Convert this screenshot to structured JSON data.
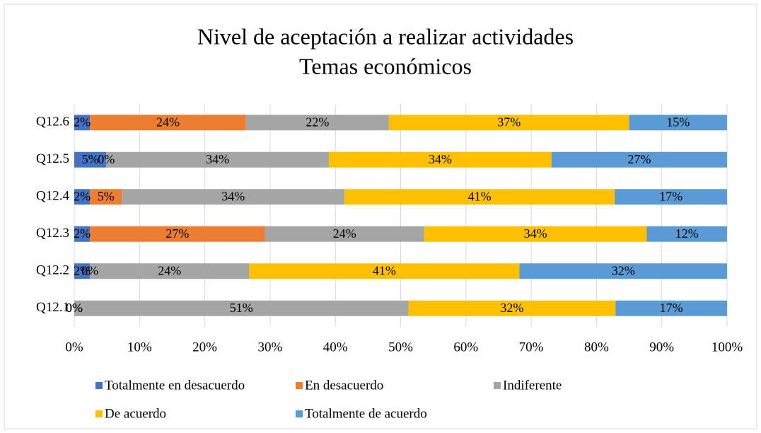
{
  "chart_data": {
    "type": "stacked-bar-horizontal",
    "title": "Nivel de aceptación a realizar actividades",
    "subtitle": "Temas económicos",
    "categories": [
      "Q12.1",
      "Q12.2",
      "Q12.3",
      "Q12.4",
      "Q12.5",
      "Q12.6"
    ],
    "series": [
      {
        "name": "Totalmente en desacuerdo",
        "color": "#4472c4",
        "values": [
          0,
          2.4,
          2.4,
          2.4,
          4.9,
          2.4
        ],
        "value_labels": [
          "0%",
          "2%",
          "2%",
          "2%",
          "5%",
          "2%"
        ]
      },
      {
        "name": "En desacuerdo",
        "color": "#ed7d31",
        "values": [
          0,
          0,
          26.8,
          4.9,
          0,
          23.9
        ],
        "value_labels": [
          "0%",
          "0%",
          "27%",
          "5%",
          "0%",
          "24%"
        ]
      },
      {
        "name": "Indiferente",
        "color": "#a5a5a5",
        "values": [
          51.2,
          24.4,
          24.4,
          34.1,
          34.1,
          21.9
        ],
        "value_labels": [
          "51%",
          "24%",
          "24%",
          "34%",
          "34%",
          "22%"
        ]
      },
      {
        "name": "De acuerdo",
        "color": "#ffc000",
        "values": [
          31.7,
          41.4,
          34.1,
          41.4,
          34.1,
          36.8
        ],
        "value_labels": [
          "32%",
          "41%",
          "34%",
          "41%",
          "34%",
          "37%"
        ]
      },
      {
        "name": "Totalmente de acuerdo",
        "color": "#5b9bd5",
        "values": [
          17.1,
          31.8,
          12.3,
          17.2,
          26.9,
          15.0
        ],
        "value_labels": [
          "17%",
          "32%",
          "12%",
          "17%",
          "27%",
          "15%"
        ]
      }
    ],
    "xlim": [
      0,
      100
    ],
    "xticks": [
      {
        "value": 0,
        "label": "0%"
      },
      {
        "value": 10,
        "label": "10%"
      },
      {
        "value": 20,
        "label": "20%"
      },
      {
        "value": 30,
        "label": "30%"
      },
      {
        "value": 40,
        "label": "40%"
      },
      {
        "value": 50,
        "label": "50%"
      },
      {
        "value": 60,
        "label": "60%"
      },
      {
        "value": 70,
        "label": "70%"
      },
      {
        "value": 80,
        "label": "80%"
      },
      {
        "value": 90,
        "label": "90%"
      },
      {
        "value": 100,
        "label": "100%"
      }
    ],
    "grid": true,
    "legend": "bottom"
  }
}
